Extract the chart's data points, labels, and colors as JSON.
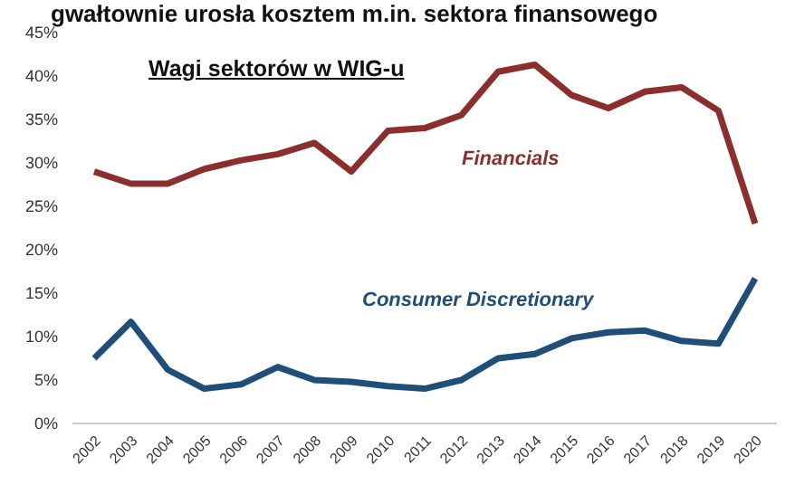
{
  "chart_data": {
    "type": "line",
    "title": "gwałtownie urosła kosztem m.in. sektora finansowego",
    "subtitle": "Wagi sektorów w WIG-u",
    "categories": [
      "2002",
      "2003",
      "2004",
      "2005",
      "2006",
      "2007",
      "2008",
      "2009",
      "2010",
      "2011",
      "2012",
      "2013",
      "2014",
      "2015",
      "2016",
      "2017",
      "2018",
      "2019",
      "2020"
    ],
    "series": [
      {
        "name": "Financials",
        "color": "#8b2e2e",
        "values": [
          29,
          27.6,
          27.6,
          29.3,
          30.3,
          31,
          32.3,
          29,
          33.7,
          34,
          35.5,
          40.5,
          41.3,
          37.8,
          36.3,
          38.2,
          38.7,
          36,
          23
        ]
      },
      {
        "name": "Consumer Discretionary",
        "color": "#1f4e79",
        "values": [
          7.5,
          11.7,
          6.2,
          4,
          4.5,
          6.5,
          5,
          4.8,
          4.3,
          4,
          5,
          7.5,
          8,
          9.8,
          10.5,
          10.7,
          9.5,
          9.2,
          16.7
        ]
      }
    ],
    "ylim": [
      0,
      45
    ],
    "yticks": [
      {
        "value": 0,
        "label": "0%"
      },
      {
        "value": 5,
        "label": "5%"
      },
      {
        "value": 10,
        "label": "10%"
      },
      {
        "value": 15,
        "label": "15%"
      },
      {
        "value": 20,
        "label": "20%"
      },
      {
        "value": 25,
        "label": "25%"
      },
      {
        "value": 30,
        "label": "30%"
      },
      {
        "value": 35,
        "label": "35%"
      },
      {
        "value": 40,
        "label": "40%"
      },
      {
        "value": 45,
        "label": "45%"
      }
    ],
    "grid": false,
    "marker": "none",
    "line_style": "solid"
  }
}
